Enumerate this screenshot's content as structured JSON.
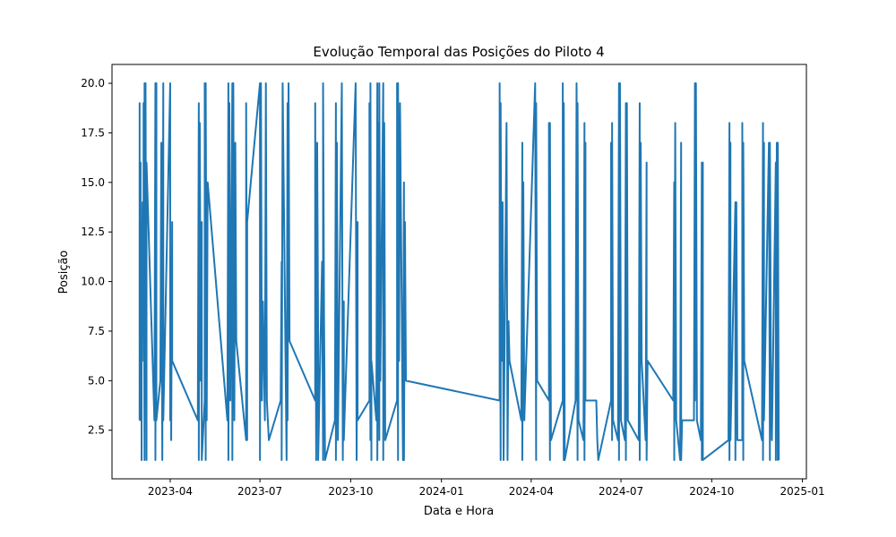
{
  "chart_data": {
    "type": "line",
    "title": "Evolução Temporal das Posições do Piloto 4",
    "xlabel": "Data e Hora",
    "ylabel": "Posição",
    "xlim": [
      "2023-02-01",
      "2025-01-05"
    ],
    "ylim": [
      0.05,
      20.95
    ],
    "grid": false,
    "x_ticks": [
      "2023-04-01",
      "2023-07-01",
      "2023-10-01",
      "2024-01-01",
      "2024-04-01",
      "2024-07-01",
      "2024-10-01",
      "2025-01-01"
    ],
    "x_tick_labels": [
      "2023-04",
      "2023-07",
      "2023-10",
      "2024-01",
      "2024-04",
      "2024-07",
      "2024-10",
      "2025-01"
    ],
    "y_ticks": [
      2.5,
      5.0,
      7.5,
      10.0,
      12.5,
      15.0,
      17.5,
      20.0
    ],
    "y_tick_labels": [
      "2.5",
      "5.0",
      "7.5",
      "10.0",
      "12.5",
      "15.0",
      "17.5",
      "20.0"
    ],
    "series": [
      {
        "name": "",
        "color": "#1f77b4",
        "points": [
          [
            "2023-03-01",
            3
          ],
          [
            "2023-03-01",
            19
          ],
          [
            "2023-03-01",
            10
          ],
          [
            "2023-03-02",
            16
          ],
          [
            "2023-03-02",
            3
          ],
          [
            "2023-03-03",
            12
          ],
          [
            "2023-03-03",
            1
          ],
          [
            "2023-03-03",
            8
          ],
          [
            "2023-03-04",
            14
          ],
          [
            "2023-03-05",
            6
          ],
          [
            "2023-03-05",
            19
          ],
          [
            "2023-03-06",
            1
          ],
          [
            "2023-03-06",
            20
          ],
          [
            "2023-03-07",
            4
          ],
          [
            "2023-03-07",
            20
          ],
          [
            "2023-03-08",
            1
          ],
          [
            "2023-03-08",
            16
          ],
          [
            "2023-03-16",
            3
          ],
          [
            "2023-03-17",
            20
          ],
          [
            "2023-03-17",
            1
          ],
          [
            "2023-03-18",
            20
          ],
          [
            "2023-03-18",
            3
          ],
          [
            "2023-03-22",
            5
          ],
          [
            "2023-03-23",
            17
          ],
          [
            "2023-03-24",
            1
          ],
          [
            "2023-03-25",
            20
          ],
          [
            "2023-03-25",
            3
          ],
          [
            "2023-04-01",
            20
          ],
          [
            "2023-04-01",
            3
          ],
          [
            "2023-04-02",
            8
          ],
          [
            "2023-04-02",
            2
          ],
          [
            "2023-04-03",
            13
          ],
          [
            "2023-04-03",
            6
          ],
          [
            "2023-04-29",
            3
          ],
          [
            "2023-04-30",
            19
          ],
          [
            "2023-04-30",
            1
          ],
          [
            "2023-05-01",
            18
          ],
          [
            "2023-05-02",
            5
          ],
          [
            "2023-05-03",
            13
          ],
          [
            "2023-05-03",
            1
          ],
          [
            "2023-05-06",
            4
          ],
          [
            "2023-05-06",
            20
          ],
          [
            "2023-05-07",
            1
          ],
          [
            "2023-05-07",
            20
          ],
          [
            "2023-05-08",
            3
          ],
          [
            "2023-05-09",
            15
          ],
          [
            "2023-05-29",
            3
          ],
          [
            "2023-05-30",
            20
          ],
          [
            "2023-05-30",
            1
          ],
          [
            "2023-05-31",
            19
          ],
          [
            "2023-06-01",
            4
          ],
          [
            "2023-06-03",
            20
          ],
          [
            "2023-06-03",
            1
          ],
          [
            "2023-06-04",
            20
          ],
          [
            "2023-06-05",
            3
          ],
          [
            "2023-06-06",
            17
          ],
          [
            "2023-06-07",
            7
          ],
          [
            "2023-06-17",
            2
          ],
          [
            "2023-06-17",
            19
          ],
          [
            "2023-06-18",
            2
          ],
          [
            "2023-06-18",
            13
          ],
          [
            "2023-07-01",
            20
          ],
          [
            "2023-07-01",
            1
          ],
          [
            "2023-07-02",
            20
          ],
          [
            "2023-07-03",
            4
          ],
          [
            "2023-07-04",
            9
          ],
          [
            "2023-07-06",
            3
          ],
          [
            "2023-07-07",
            20
          ],
          [
            "2023-07-08",
            4
          ],
          [
            "2023-07-10",
            2
          ],
          [
            "2023-07-22",
            4
          ],
          [
            "2023-07-23",
            11
          ],
          [
            "2023-07-23",
            1
          ],
          [
            "2023-07-24",
            20
          ],
          [
            "2023-07-28",
            1
          ],
          [
            "2023-07-29",
            19
          ],
          [
            "2023-07-29",
            3
          ],
          [
            "2023-07-30",
            20
          ],
          [
            "2023-07-31",
            7
          ],
          [
            "2023-08-26",
            4
          ],
          [
            "2023-08-26",
            19
          ],
          [
            "2023-08-27",
            1
          ],
          [
            "2023-08-28",
            17
          ],
          [
            "2023-08-29",
            7
          ],
          [
            "2023-08-29",
            1
          ],
          [
            "2023-09-02",
            11
          ],
          [
            "2023-09-03",
            1
          ],
          [
            "2023-09-03",
            20
          ],
          [
            "2023-09-04",
            8
          ],
          [
            "2023-09-05",
            1
          ],
          [
            "2023-09-15",
            3
          ],
          [
            "2023-09-16",
            19
          ],
          [
            "2023-09-16",
            1
          ],
          [
            "2023-09-17",
            17
          ],
          [
            "2023-09-18",
            2
          ],
          [
            "2023-09-22",
            20
          ],
          [
            "2023-09-23",
            1
          ],
          [
            "2023-09-24",
            9
          ],
          [
            "2023-09-24",
            2
          ],
          [
            "2023-10-06",
            20
          ],
          [
            "2023-10-07",
            1
          ],
          [
            "2023-10-08",
            13
          ],
          [
            "2023-10-08",
            3
          ],
          [
            "2023-10-20",
            4
          ],
          [
            "2023-10-20",
            19
          ],
          [
            "2023-10-21",
            2
          ],
          [
            "2023-10-21",
            20
          ],
          [
            "2023-10-22",
            1
          ],
          [
            "2023-10-22",
            6
          ],
          [
            "2023-10-27",
            3
          ],
          [
            "2023-10-28",
            20
          ],
          [
            "2023-10-28",
            1
          ],
          [
            "2023-10-29",
            18
          ],
          [
            "2023-10-30",
            2
          ],
          [
            "2023-10-30",
            20
          ],
          [
            "2023-10-31",
            5
          ],
          [
            "2023-11-03",
            20
          ],
          [
            "2023-11-03",
            1
          ],
          [
            "2023-11-04",
            18
          ],
          [
            "2023-11-05",
            2
          ],
          [
            "2023-11-17",
            4
          ],
          [
            "2023-11-17",
            20
          ],
          [
            "2023-11-18",
            1
          ],
          [
            "2023-11-18",
            20
          ],
          [
            "2023-11-19",
            6
          ],
          [
            "2023-11-20",
            19
          ],
          [
            "2023-11-23",
            1
          ],
          [
            "2023-11-24",
            15
          ],
          [
            "2023-11-24",
            1
          ],
          [
            "2023-11-25",
            13
          ],
          [
            "2023-11-26",
            5
          ],
          [
            "2024-02-29",
            4
          ],
          [
            "2024-02-29",
            20
          ],
          [
            "2024-03-01",
            1
          ],
          [
            "2024-03-01",
            19
          ],
          [
            "2024-03-02",
            6
          ],
          [
            "2024-03-03",
            14
          ],
          [
            "2024-03-04",
            1
          ],
          [
            "2024-03-07",
            18
          ],
          [
            "2024-03-08",
            1
          ],
          [
            "2024-03-09",
            8
          ],
          [
            "2024-03-10",
            6
          ],
          [
            "2024-03-22",
            3
          ],
          [
            "2024-03-23",
            17
          ],
          [
            "2024-03-23",
            1
          ],
          [
            "2024-03-24",
            15
          ],
          [
            "2024-03-25",
            3
          ],
          [
            "2024-04-05",
            20
          ],
          [
            "2024-04-06",
            1
          ],
          [
            "2024-04-06",
            19
          ],
          [
            "2024-04-07",
            5
          ],
          [
            "2024-04-19",
            4
          ],
          [
            "2024-04-19",
            18
          ],
          [
            "2024-04-20",
            1
          ],
          [
            "2024-04-20",
            18
          ],
          [
            "2024-04-21",
            2
          ],
          [
            "2024-05-03",
            4
          ],
          [
            "2024-05-03",
            20
          ],
          [
            "2024-05-04",
            1
          ],
          [
            "2024-05-04",
            19
          ],
          [
            "2024-05-05",
            1
          ],
          [
            "2024-05-16",
            4
          ],
          [
            "2024-05-17",
            20
          ],
          [
            "2024-05-18",
            1
          ],
          [
            "2024-05-18",
            19
          ],
          [
            "2024-05-19",
            3
          ],
          [
            "2024-05-24",
            2
          ],
          [
            "2024-05-25",
            18
          ],
          [
            "2024-05-25",
            1
          ],
          [
            "2024-05-26",
            17
          ],
          [
            "2024-05-26",
            4
          ],
          [
            "2024-06-06",
            4
          ],
          [
            "2024-06-07",
            2
          ],
          [
            "2024-06-08",
            1
          ],
          [
            "2024-06-21",
            4
          ],
          [
            "2024-06-21",
            17
          ],
          [
            "2024-06-22",
            2
          ],
          [
            "2024-06-22",
            18
          ],
          [
            "2024-06-23",
            3
          ],
          [
            "2024-06-28",
            2
          ],
          [
            "2024-06-29",
            20
          ],
          [
            "2024-06-29",
            1
          ],
          [
            "2024-06-30",
            20
          ],
          [
            "2024-07-01",
            3
          ],
          [
            "2024-07-05",
            2
          ],
          [
            "2024-07-06",
            19
          ],
          [
            "2024-07-06",
            1
          ],
          [
            "2024-07-07",
            19
          ],
          [
            "2024-07-08",
            3
          ],
          [
            "2024-07-19",
            2
          ],
          [
            "2024-07-20",
            19
          ],
          [
            "2024-07-20",
            1
          ],
          [
            "2024-07-21",
            17
          ],
          [
            "2024-07-22",
            6
          ],
          [
            "2024-07-26",
            2
          ],
          [
            "2024-07-27",
            16
          ],
          [
            "2024-07-27",
            1
          ],
          [
            "2024-07-28",
            6
          ],
          [
            "2024-08-23",
            4
          ],
          [
            "2024-08-24",
            15
          ],
          [
            "2024-08-24",
            1
          ],
          [
            "2024-08-25",
            18
          ],
          [
            "2024-08-26",
            3
          ],
          [
            "2024-08-30",
            1
          ],
          [
            "2024-08-31",
            17
          ],
          [
            "2024-08-31",
            1
          ],
          [
            "2024-09-01",
            3
          ],
          [
            "2024-09-13",
            3
          ],
          [
            "2024-09-14",
            20
          ],
          [
            "2024-09-14",
            4
          ],
          [
            "2024-09-15",
            20
          ],
          [
            "2024-09-16",
            3
          ],
          [
            "2024-09-20",
            2
          ],
          [
            "2024-09-21",
            16
          ],
          [
            "2024-09-21",
            1
          ],
          [
            "2024-09-22",
            16
          ],
          [
            "2024-09-22",
            1
          ],
          [
            "2024-10-18",
            2
          ],
          [
            "2024-10-19",
            18
          ],
          [
            "2024-10-19",
            1
          ],
          [
            "2024-10-20",
            17
          ],
          [
            "2024-10-20",
            2
          ],
          [
            "2024-10-25",
            14
          ],
          [
            "2024-10-25",
            1
          ],
          [
            "2024-10-26",
            14
          ],
          [
            "2024-10-27",
            2
          ],
          [
            "2024-11-01",
            2
          ],
          [
            "2024-11-01",
            18
          ],
          [
            "2024-11-02",
            1
          ],
          [
            "2024-11-02",
            17
          ],
          [
            "2024-11-03",
            6
          ],
          [
            "2024-11-21",
            2
          ],
          [
            "2024-11-22",
            18
          ],
          [
            "2024-11-22",
            1
          ],
          [
            "2024-11-23",
            17
          ],
          [
            "2024-11-23",
            3
          ],
          [
            "2024-11-28",
            17
          ],
          [
            "2024-11-29",
            1
          ],
          [
            "2024-11-29",
            17
          ],
          [
            "2024-11-30",
            6
          ],
          [
            "2024-12-01",
            2
          ],
          [
            "2024-12-05",
            16
          ],
          [
            "2024-12-05",
            1
          ],
          [
            "2024-12-06",
            17
          ],
          [
            "2024-12-07",
            1
          ],
          [
            "2024-12-07",
            17
          ],
          [
            "2024-12-08",
            1
          ]
        ]
      }
    ]
  }
}
